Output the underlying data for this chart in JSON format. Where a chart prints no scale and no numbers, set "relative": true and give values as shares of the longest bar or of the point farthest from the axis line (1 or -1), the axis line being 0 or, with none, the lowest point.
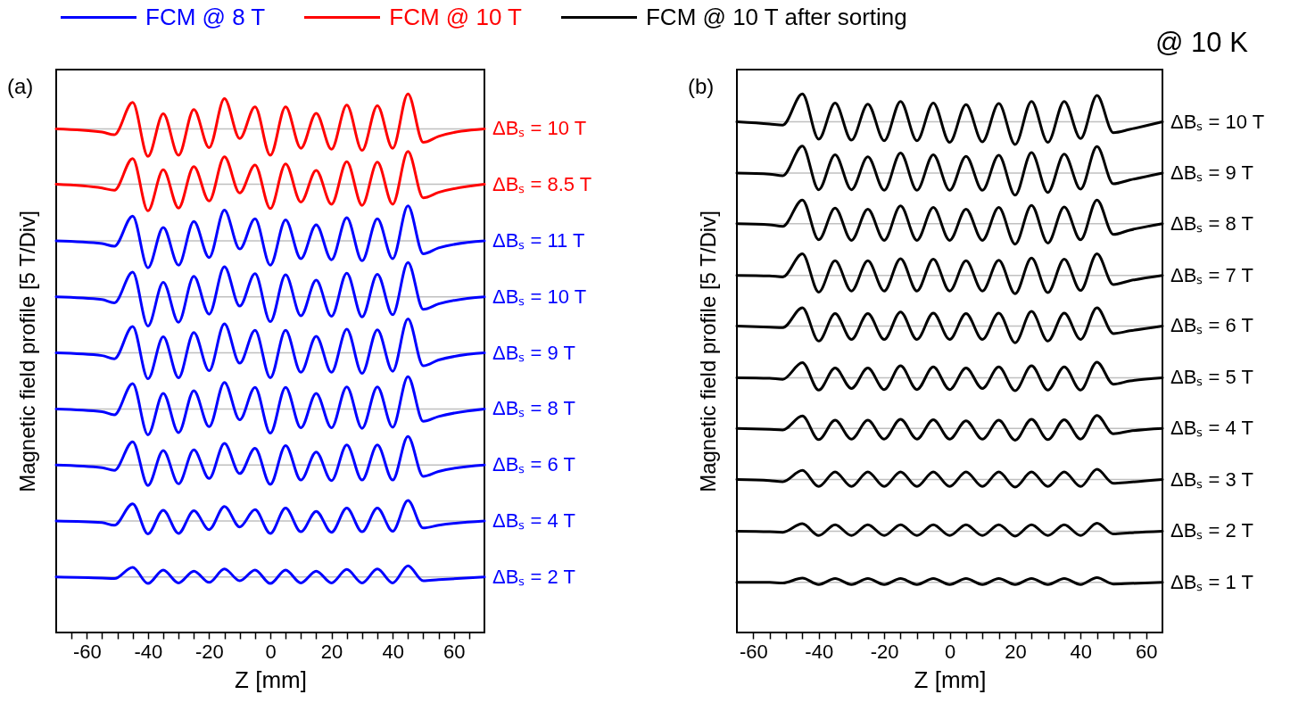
{
  "chart_data": [
    {
      "type": "line",
      "title": "(a)",
      "xlabel": "Z  [mm]",
      "ylabel": "Magnetic field profile  [5 T/Div]",
      "relative": true,
      "annotations": [
        "FCM @ 8 T",
        "FCM @ 10 T"
      ],
      "xlim": [
        -70,
        70
      ],
      "xticks": [
        {
          "value": -65,
          "label": null
        },
        -60,
        {
          "value": -55,
          "label": null
        },
        {
          "value": -50,
          "label": null
        },
        {
          "value": -45,
          "label": null
        },
        -40,
        {
          "value": -35,
          "label": null
        },
        {
          "value": -30,
          "label": null
        },
        {
          "value": -25,
          "label": null
        },
        -20,
        {
          "value": -15,
          "label": null
        },
        {
          "value": -10,
          "label": null
        },
        {
          "value": -5,
          "label": null
        },
        0,
        {
          "value": 5,
          "label": null
        },
        {
          "value": 10,
          "label": null
        },
        {
          "value": 15,
          "label": null
        },
        20,
        {
          "value": 25,
          "label": null
        },
        {
          "value": 30,
          "label": null
        },
        {
          "value": 35,
          "label": null
        },
        40,
        {
          "value": 45,
          "label": null
        },
        {
          "value": 50,
          "label": null
        },
        {
          "value": 55,
          "label": null
        },
        60,
        {
          "value": 65,
          "label": null
        }
      ],
      "x": [
        -70,
        -55,
        -51,
        -45,
        -40,
        -35,
        -30,
        -25,
        -20,
        -15,
        -10,
        -5,
        0,
        5,
        10,
        15,
        20,
        25,
        30,
        35,
        40,
        45,
        50,
        55,
        70
      ],
      "ref_lines": [
        {
          "axis": "y",
          "value": 0.103,
          "color": "#c0c0c0"
        },
        {
          "axis": "y",
          "value": 0.207,
          "color": "#c0c0c0"
        },
        {
          "axis": "y",
          "value": 0.311,
          "color": "#c0c0c0"
        },
        {
          "axis": "y",
          "value": 0.415,
          "color": "#c0c0c0"
        },
        {
          "axis": "y",
          "value": 0.519,
          "color": "#c0c0c0"
        },
        {
          "axis": "y",
          "value": 0.623,
          "color": "#c0c0c0"
        },
        {
          "axis": "y",
          "value": 0.727,
          "color": "#c0c0c0"
        },
        {
          "axis": "y",
          "value": 0.832,
          "color": "#c0c0c0"
        },
        {
          "axis": "y",
          "value": 0.935,
          "color": "#c0c0c0"
        }
      ],
      "series": [
        {
          "name": "ΔBₛ = 2 T",
          "color": "#0000ff",
          "values": [
            0.103,
            0.101,
            0.1,
            0.121,
            0.091,
            0.116,
            0.092,
            0.114,
            0.093,
            0.118,
            0.096,
            0.116,
            0.091,
            0.116,
            0.092,
            0.114,
            0.092,
            0.117,
            0.092,
            0.118,
            0.092,
            0.124,
            0.096,
            0.098,
            0.103
          ]
        },
        {
          "name": "ΔBₛ = 4 T",
          "color": "#0000ff",
          "values": [
            0.207,
            0.204,
            0.199,
            0.239,
            0.183,
            0.227,
            0.184,
            0.226,
            0.191,
            0.234,
            0.196,
            0.228,
            0.184,
            0.231,
            0.187,
            0.225,
            0.186,
            0.231,
            0.187,
            0.231,
            0.188,
            0.245,
            0.194,
            0.199,
            0.207
          ]
        },
        {
          "name": "ΔBₛ = 6 T",
          "color": "#0000ff",
          "values": [
            0.311,
            0.306,
            0.301,
            0.354,
            0.273,
            0.338,
            0.276,
            0.339,
            0.286,
            0.351,
            0.295,
            0.342,
            0.275,
            0.347,
            0.283,
            0.335,
            0.282,
            0.348,
            0.283,
            0.348,
            0.283,
            0.364,
            0.29,
            0.299,
            0.311
          ]
        },
        {
          "name": "ΔBₛ = 8 T",
          "color": "#0000ff",
          "values": [
            0.415,
            0.41,
            0.404,
            0.462,
            0.367,
            0.444,
            0.371,
            0.449,
            0.382,
            0.464,
            0.395,
            0.455,
            0.37,
            0.455,
            0.38,
            0.444,
            0.38,
            0.456,
            0.379,
            0.456,
            0.381,
            0.475,
            0.392,
            0.401,
            0.415
          ]
        },
        {
          "name": "ΔBₛ = 9 T",
          "color": "#0000ff",
          "values": [
            0.519,
            0.514,
            0.508,
            0.568,
            0.471,
            0.549,
            0.473,
            0.557,
            0.486,
            0.573,
            0.5,
            0.561,
            0.473,
            0.561,
            0.483,
            0.55,
            0.483,
            0.563,
            0.481,
            0.562,
            0.485,
            0.582,
            0.495,
            0.506,
            0.519
          ]
        },
        {
          "name": "ΔBₛ = 10 T",
          "color": "#0000ff",
          "values": [
            0.623,
            0.618,
            0.612,
            0.669,
            0.569,
            0.65,
            0.576,
            0.661,
            0.591,
            0.679,
            0.606,
            0.666,
            0.577,
            0.664,
            0.588,
            0.654,
            0.587,
            0.667,
            0.586,
            0.665,
            0.59,
            0.687,
            0.6,
            0.61,
            0.623
          ]
        },
        {
          "name": "ΔBₛ = 11 T",
          "color": "#0000ff",
          "values": [
            0.727,
            0.722,
            0.717,
            0.773,
            0.677,
            0.752,
            0.682,
            0.763,
            0.696,
            0.784,
            0.712,
            0.768,
            0.682,
            0.766,
            0.694,
            0.757,
            0.692,
            0.77,
            0.69,
            0.768,
            0.694,
            0.792,
            0.703,
            0.714,
            0.727
          ]
        },
        {
          "name": "ΔBₛ = 8.5 T",
          "color": "#ff0000",
          "values": [
            0.832,
            0.825,
            0.821,
            0.88,
            0.783,
            0.859,
            0.788,
            0.865,
            0.801,
            0.883,
            0.816,
            0.868,
            0.787,
            0.87,
            0.799,
            0.858,
            0.795,
            0.874,
            0.793,
            0.873,
            0.795,
            0.893,
            0.807,
            0.817,
            0.832
          ]
        },
        {
          "name": "ΔBₛ = 10 T",
          "color": "#ff0000",
          "values": [
            0.935,
            0.929,
            0.924,
            0.984,
            0.884,
            0.963,
            0.886,
            0.971,
            0.9,
            0.991,
            0.917,
            0.976,
            0.886,
            0.976,
            0.899,
            0.964,
            0.897,
            0.979,
            0.895,
            0.978,
            0.899,
            1,
            0.91,
            0.921,
            0.935
          ]
        }
      ]
    },
    {
      "type": "line",
      "title": "(b)",
      "xlabel": "Z  [mm]",
      "ylabel": "Magnetic field profile  [5 T/Div]",
      "relative": true,
      "annotations": [
        "FCM @ 10 T after sorting",
        "@ 10 K"
      ],
      "xlim": [
        -65,
        65
      ],
      "xticks": [
        -60,
        {
          "value": -55,
          "label": null
        },
        {
          "value": -50,
          "label": null
        },
        {
          "value": -45,
          "label": null
        },
        -40,
        {
          "value": -35,
          "label": null
        },
        {
          "value": -30,
          "label": null
        },
        {
          "value": -25,
          "label": null
        },
        -20,
        {
          "value": -15,
          "label": null
        },
        {
          "value": -10,
          "label": null
        },
        {
          "value": -5,
          "label": null
        },
        0,
        {
          "value": 5,
          "label": null
        },
        {
          "value": 10,
          "label": null
        },
        {
          "value": 15,
          "label": null
        },
        20,
        {
          "value": 25,
          "label": null
        },
        {
          "value": 30,
          "label": null
        },
        {
          "value": 35,
          "label": null
        },
        40,
        {
          "value": 45,
          "label": null
        },
        {
          "value": 50,
          "label": null
        },
        {
          "value": 55,
          "label": null
        },
        60
      ],
      "x": [
        -65,
        -55,
        -51,
        -45,
        -40,
        -35,
        -30,
        -25,
        -20,
        -15,
        -10,
        -5,
        0,
        5,
        10,
        15,
        20,
        25,
        30,
        35,
        40,
        45,
        50,
        55,
        65
      ],
      "ref_lines": [
        {
          "axis": "y",
          "value": 0.093,
          "color": "#c0c0c0"
        },
        {
          "axis": "y",
          "value": 0.188,
          "color": "#c0c0c0"
        },
        {
          "axis": "y",
          "value": 0.284,
          "color": "#c0c0c0"
        },
        {
          "axis": "y",
          "value": 0.379,
          "color": "#c0c0c0"
        },
        {
          "axis": "y",
          "value": 0.473,
          "color": "#c0c0c0"
        },
        {
          "axis": "y",
          "value": 0.569,
          "color": "#c0c0c0"
        },
        {
          "axis": "y",
          "value": 0.663,
          "color": "#c0c0c0"
        },
        {
          "axis": "y",
          "value": 0.759,
          "color": "#c0c0c0"
        },
        {
          "axis": "y",
          "value": 0.853,
          "color": "#c0c0c0"
        },
        {
          "axis": "y",
          "value": 0.948,
          "color": "#c0c0c0"
        }
      ],
      "series": [
        {
          "name": "ΔBₛ = 1 T",
          "color": "#000000",
          "values": [
            0.093,
            0.093,
            0.092,
            0.101,
            0.089,
            0.1,
            0.089,
            0.1,
            0.089,
            0.1,
            0.089,
            0.1,
            0.089,
            0.1,
            0.089,
            0.1,
            0.089,
            0.1,
            0.089,
            0.1,
            0.089,
            0.102,
            0.09,
            0.091,
            0.093
          ]
        },
        {
          "name": "ΔBₛ = 2 T",
          "color": "#000000",
          "values": [
            0.188,
            0.187,
            0.186,
            0.202,
            0.18,
            0.2,
            0.18,
            0.2,
            0.18,
            0.2,
            0.18,
            0.2,
            0.18,
            0.2,
            0.18,
            0.2,
            0.179,
            0.2,
            0.18,
            0.2,
            0.18,
            0.203,
            0.183,
            0.185,
            0.188
          ]
        },
        {
          "name": "ΔBₛ = 3 T",
          "color": "#000000",
          "values": [
            0.284,
            0.282,
            0.28,
            0.301,
            0.271,
            0.298,
            0.271,
            0.298,
            0.271,
            0.298,
            0.271,
            0.298,
            0.271,
            0.298,
            0.271,
            0.298,
            0.27,
            0.298,
            0.271,
            0.298,
            0.271,
            0.303,
            0.277,
            0.279,
            0.284
          ]
        },
        {
          "name": "ΔBₛ = 4 T",
          "color": "#000000",
          "values": [
            0.379,
            0.377,
            0.376,
            0.402,
            0.358,
            0.394,
            0.359,
            0.394,
            0.359,
            0.396,
            0.359,
            0.395,
            0.359,
            0.393,
            0.359,
            0.394,
            0.357,
            0.396,
            0.358,
            0.395,
            0.359,
            0.403,
            0.369,
            0.374,
            0.379
          ]
        },
        {
          "name": "ΔBₛ = 5 T",
          "color": "#000000",
          "values": [
            0.473,
            0.472,
            0.47,
            0.501,
            0.45,
            0.491,
            0.453,
            0.491,
            0.451,
            0.495,
            0.451,
            0.493,
            0.451,
            0.491,
            0.453,
            0.493,
            0.449,
            0.495,
            0.45,
            0.493,
            0.45,
            0.502,
            0.461,
            0.467,
            0.473
          ]
        },
        {
          "name": "ΔBₛ = 6 T",
          "color": "#000000",
          "values": [
            0.569,
            0.567,
            0.566,
            0.603,
            0.541,
            0.592,
            0.544,
            0.592,
            0.544,
            0.595,
            0.544,
            0.593,
            0.544,
            0.592,
            0.544,
            0.593,
            0.538,
            0.596,
            0.541,
            0.593,
            0.544,
            0.603,
            0.555,
            0.56,
            0.569
          ]
        },
        {
          "name": "ΔBₛ = 7 T",
          "color": "#000000",
          "values": [
            0.663,
            0.662,
            0.66,
            0.703,
            0.632,
            0.69,
            0.634,
            0.69,
            0.634,
            0.694,
            0.634,
            0.693,
            0.634,
            0.69,
            0.634,
            0.691,
            0.629,
            0.695,
            0.631,
            0.693,
            0.635,
            0.703,
            0.646,
            0.653,
            0.663
          ]
        },
        {
          "name": "ΔBₛ = 8 T",
          "color": "#000000",
          "values": [
            0.759,
            0.757,
            0.754,
            0.803,
            0.729,
            0.788,
            0.728,
            0.786,
            0.728,
            0.792,
            0.728,
            0.789,
            0.728,
            0.786,
            0.728,
            0.789,
            0.721,
            0.793,
            0.723,
            0.79,
            0.729,
            0.803,
            0.739,
            0.747,
            0.759
          ]
        },
        {
          "name": "ΔBₛ = 9 T",
          "color": "#000000",
          "values": [
            0.853,
            0.851,
            0.848,
            0.903,
            0.822,
            0.887,
            0.822,
            0.883,
            0.821,
            0.89,
            0.821,
            0.887,
            0.821,
            0.884,
            0.821,
            0.886,
            0.812,
            0.891,
            0.817,
            0.888,
            0.823,
            0.902,
            0.833,
            0.84,
            0.853
          ]
        },
        {
          "name": "ΔBₛ = 10 T",
          "color": "#000000",
          "values": [
            0.948,
            0.944,
            0.942,
            1,
            0.916,
            0.983,
            0.914,
            0.981,
            0.913,
            0.986,
            0.913,
            0.983,
            0.91,
            0.98,
            0.911,
            0.982,
            0.906,
            0.986,
            0.91,
            0.986,
            0.917,
            0.997,
            0.928,
            0.934,
            0.948
          ]
        }
      ]
    }
  ]
}
